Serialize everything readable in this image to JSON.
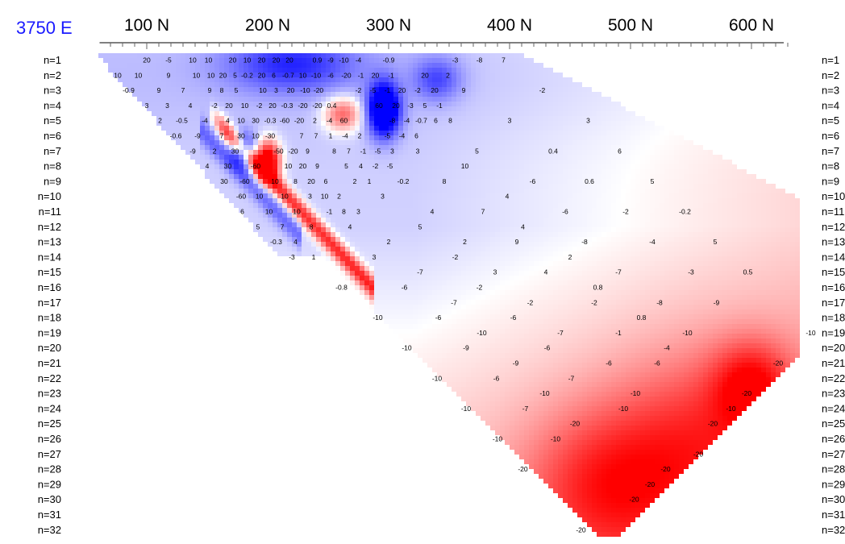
{
  "line_label": "3750 E",
  "colors": {
    "negative": "#ff0000",
    "positive": "#0000ff",
    "neutral": "#ffffff",
    "text": "#000000",
    "axis_label": "#1a1aff"
  },
  "chart_data": {
    "type": "heatmap",
    "title": "",
    "xlabel": "",
    "ylabel": "",
    "x_ticks": [
      100,
      200,
      300,
      400,
      500,
      600
    ],
    "x_tick_labels": [
      "100 N",
      "200 N",
      "300 N",
      "400 N",
      "500 N",
      "600 N"
    ],
    "xlim": [
      60,
      640
    ],
    "y_levels": [
      "n=1",
      "n=2",
      "n=3",
      "n=4",
      "n=5",
      "n=6",
      "n=7",
      "n=8",
      "n=9",
      "n=10",
      "n=11",
      "n=12",
      "n=13",
      "n=14",
      "n=15",
      "n=16",
      "n=17",
      "n=18",
      "n=19",
      "n=20",
      "n=21",
      "n=22",
      "n=23",
      "n=24",
      "n=25",
      "n=26",
      "n=27",
      "n=28",
      "n=29",
      "n=30",
      "n=31",
      "n=32"
    ],
    "color_scale": {
      "min": -60,
      "max": 60,
      "negative": "#ff0000",
      "zero": "#ffffff",
      "positive": "#0000ff"
    },
    "anomalies": [
      {
        "x": 296,
        "n": 4.3,
        "value": 60,
        "sx": 9,
        "sn": 1.2
      },
      {
        "x": 200,
        "n": 7.7,
        "value": -60,
        "sx": 7,
        "sn": 0.9
      },
      {
        "x": 262,
        "n": 4.6,
        "value": -30,
        "sx": 11,
        "sn": 0.8
      },
      {
        "x": 180,
        "n": 7.0,
        "value": 35,
        "sx": 7,
        "sn": 0.8
      },
      {
        "x": 220,
        "n": 1.3,
        "value": 25,
        "sx": 38,
        "sn": 1.3
      },
      {
        "x": 340,
        "n": 2.3,
        "value": 20,
        "sx": 14,
        "sn": 1.0
      },
      {
        "x": 600,
        "n": 22.5,
        "value": -25,
        "sx": 22,
        "sn": 2.0
      },
      {
        "x": 480,
        "n": 29,
        "value": -22,
        "sx": 45,
        "sn": 3.5
      },
      {
        "x": 560,
        "n": 26,
        "value": -18,
        "sx": 50,
        "sn": 4.0
      }
    ],
    "data_labels": [
      {
        "x": 100,
        "n": 1,
        "v": "20"
      },
      {
        "x": 118,
        "n": 1,
        "v": "-5"
      },
      {
        "x": 138,
        "n": 1,
        "v": "10"
      },
      {
        "x": 151,
        "n": 1,
        "v": "10"
      },
      {
        "x": 171,
        "n": 1,
        "v": "20"
      },
      {
        "x": 183,
        "n": 1,
        "v": "10"
      },
      {
        "x": 195,
        "n": 1,
        "v": "20"
      },
      {
        "x": 207,
        "n": 1,
        "v": "20"
      },
      {
        "x": 218,
        "n": 1,
        "v": "20"
      },
      {
        "x": 241,
        "n": 1,
        "v": "0.9"
      },
      {
        "x": 252,
        "n": 1,
        "v": "-9"
      },
      {
        "x": 263,
        "n": 1,
        "v": "-10"
      },
      {
        "x": 275,
        "n": 1,
        "v": "-4"
      },
      {
        "x": 300,
        "n": 1,
        "v": "-0.9"
      },
      {
        "x": 355,
        "n": 1,
        "v": "-3"
      },
      {
        "x": 375,
        "n": 1,
        "v": "-8"
      },
      {
        "x": 395,
        "n": 1,
        "v": "7"
      },
      {
        "x": 76,
        "n": 2,
        "v": "10"
      },
      {
        "x": 93,
        "n": 2,
        "v": "10"
      },
      {
        "x": 118,
        "n": 2,
        "v": "9"
      },
      {
        "x": 141,
        "n": 2,
        "v": "10"
      },
      {
        "x": 153,
        "n": 2,
        "v": "10"
      },
      {
        "x": 163,
        "n": 2,
        "v": "20"
      },
      {
        "x": 173,
        "n": 2,
        "v": "5"
      },
      {
        "x": 183,
        "n": 2,
        "v": "-0.2"
      },
      {
        "x": 195,
        "n": 2,
        "v": "20"
      },
      {
        "x": 205,
        "n": 2,
        "v": "6"
      },
      {
        "x": 217,
        "n": 2,
        "v": "-0.7"
      },
      {
        "x": 229,
        "n": 2,
        "v": "10"
      },
      {
        "x": 240,
        "n": 2,
        "v": "-10"
      },
      {
        "x": 252,
        "n": 2,
        "v": "-6"
      },
      {
        "x": 265,
        "n": 2,
        "v": "-20"
      },
      {
        "x": 277,
        "n": 2,
        "v": "-1"
      },
      {
        "x": 289,
        "n": 2,
        "v": "20"
      },
      {
        "x": 302,
        "n": 2,
        "v": "-1"
      },
      {
        "x": 330,
        "n": 2,
        "v": "20"
      },
      {
        "x": 349,
        "n": 2,
        "v": "2"
      },
      {
        "x": 85,
        "n": 3,
        "v": "-0.9"
      },
      {
        "x": 110,
        "n": 3,
        "v": "9"
      },
      {
        "x": 130,
        "n": 3,
        "v": "7"
      },
      {
        "x": 152,
        "n": 3,
        "v": "9"
      },
      {
        "x": 162,
        "n": 3,
        "v": "8"
      },
      {
        "x": 174,
        "n": 3,
        "v": "5"
      },
      {
        "x": 196,
        "n": 3,
        "v": "10"
      },
      {
        "x": 207,
        "n": 3,
        "v": "3"
      },
      {
        "x": 219,
        "n": 3,
        "v": "20"
      },
      {
        "x": 231,
        "n": 3,
        "v": "-10"
      },
      {
        "x": 242,
        "n": 3,
        "v": "-20"
      },
      {
        "x": 275,
        "n": 3,
        "v": "-2"
      },
      {
        "x": 287,
        "n": 3,
        "v": "-5"
      },
      {
        "x": 299,
        "n": 3,
        "v": "-1"
      },
      {
        "x": 311,
        "n": 3,
        "v": "20"
      },
      {
        "x": 324,
        "n": 3,
        "v": "-2"
      },
      {
        "x": 338,
        "n": 3,
        "v": "20"
      },
      {
        "x": 362,
        "n": 3,
        "v": "9"
      },
      {
        "x": 427,
        "n": 3,
        "v": "-2"
      },
      {
        "x": 100,
        "n": 4,
        "v": "3"
      },
      {
        "x": 117,
        "n": 4,
        "v": "3"
      },
      {
        "x": 136,
        "n": 4,
        "v": "4"
      },
      {
        "x": 156,
        "n": 4,
        "v": "-2"
      },
      {
        "x": 168,
        "n": 4,
        "v": "20"
      },
      {
        "x": 181,
        "n": 4,
        "v": "10"
      },
      {
        "x": 193,
        "n": 4,
        "v": "-2"
      },
      {
        "x": 204,
        "n": 4,
        "v": "20"
      },
      {
        "x": 216,
        "n": 4,
        "v": "-0.3"
      },
      {
        "x": 229,
        "n": 4,
        "v": "-20"
      },
      {
        "x": 241,
        "n": 4,
        "v": "-20"
      },
      {
        "x": 253,
        "n": 4,
        "v": "0.4"
      },
      {
        "x": 292,
        "n": 4,
        "v": "60"
      },
      {
        "x": 306,
        "n": 4,
        "v": "20"
      },
      {
        "x": 318,
        "n": 4,
        "v": "-3"
      },
      {
        "x": 330,
        "n": 4,
        "v": "5"
      },
      {
        "x": 342,
        "n": 4,
        "v": "-1"
      },
      {
        "x": 111,
        "n": 5,
        "v": "2"
      },
      {
        "x": 129,
        "n": 5,
        "v": "-0.5"
      },
      {
        "x": 148,
        "n": 5,
        "v": "-4"
      },
      {
        "x": 167,
        "n": 5,
        "v": "4"
      },
      {
        "x": 178,
        "n": 5,
        "v": "10"
      },
      {
        "x": 190,
        "n": 5,
        "v": "30"
      },
      {
        "x": 202,
        "n": 5,
        "v": "-0.3"
      },
      {
        "x": 214,
        "n": 5,
        "v": "-60"
      },
      {
        "x": 226,
        "n": 5,
        "v": "-20"
      },
      {
        "x": 239,
        "n": 5,
        "v": "2"
      },
      {
        "x": 251,
        "n": 5,
        "v": "-4"
      },
      {
        "x": 263,
        "n": 5,
        "v": "60"
      },
      {
        "x": 303,
        "n": 5,
        "v": "-8"
      },
      {
        "x": 315,
        "n": 5,
        "v": "-4"
      },
      {
        "x": 327,
        "n": 5,
        "v": "-0.7"
      },
      {
        "x": 339,
        "n": 5,
        "v": "6"
      },
      {
        "x": 351,
        "n": 5,
        "v": "8"
      },
      {
        "x": 400,
        "n": 5,
        "v": "3"
      },
      {
        "x": 465,
        "n": 5,
        "v": "3"
      },
      {
        "x": 124,
        "n": 6,
        "v": "-0.6"
      },
      {
        "x": 142,
        "n": 6,
        "v": "-9"
      },
      {
        "x": 162,
        "n": 6,
        "v": "7"
      },
      {
        "x": 178,
        "n": 6,
        "v": "30"
      },
      {
        "x": 190,
        "n": 6,
        "v": "10"
      },
      {
        "x": 202,
        "n": 6,
        "v": "-30"
      },
      {
        "x": 228,
        "n": 6,
        "v": "7"
      },
      {
        "x": 240,
        "n": 6,
        "v": "7"
      },
      {
        "x": 252,
        "n": 6,
        "v": "1"
      },
      {
        "x": 264,
        "n": 6,
        "v": "-4"
      },
      {
        "x": 276,
        "n": 6,
        "v": "2"
      },
      {
        "x": 299,
        "n": 6,
        "v": "-5"
      },
      {
        "x": 311,
        "n": 6,
        "v": "-4"
      },
      {
        "x": 323,
        "n": 6,
        "v": "6"
      },
      {
        "x": 138,
        "n": 7,
        "v": "-9"
      },
      {
        "x": 156,
        "n": 7,
        "v": "2"
      },
      {
        "x": 173,
        "n": 7,
        "v": "30"
      },
      {
        "x": 209,
        "n": 7,
        "v": "-50"
      },
      {
        "x": 221,
        "n": 7,
        "v": "-20"
      },
      {
        "x": 233,
        "n": 7,
        "v": "9"
      },
      {
        "x": 255,
        "n": 7,
        "v": "8"
      },
      {
        "x": 267,
        "n": 7,
        "v": "7"
      },
      {
        "x": 279,
        "n": 7,
        "v": "-1"
      },
      {
        "x": 291,
        "n": 7,
        "v": "-5"
      },
      {
        "x": 303,
        "n": 7,
        "v": "3"
      },
      {
        "x": 324,
        "n": 7,
        "v": "3"
      },
      {
        "x": 373,
        "n": 7,
        "v": "5"
      },
      {
        "x": 436,
        "n": 7,
        "v": "0.4"
      },
      {
        "x": 491,
        "n": 7,
        "v": "6"
      },
      {
        "x": 150,
        "n": 8,
        "v": "4"
      },
      {
        "x": 167,
        "n": 8,
        "v": "30"
      },
      {
        "x": 190,
        "n": 8,
        "v": "-60"
      },
      {
        "x": 217,
        "n": 8,
        "v": "10"
      },
      {
        "x": 229,
        "n": 8,
        "v": "20"
      },
      {
        "x": 241,
        "n": 8,
        "v": "9"
      },
      {
        "x": 265,
        "n": 8,
        "v": "5"
      },
      {
        "x": 277,
        "n": 8,
        "v": "4"
      },
      {
        "x": 289,
        "n": 8,
        "v": "-2"
      },
      {
        "x": 301,
        "n": 8,
        "v": "-5"
      },
      {
        "x": 363,
        "n": 8,
        "v": "10"
      },
      {
        "x": 164,
        "n": 9,
        "v": "30"
      },
      {
        "x": 181,
        "n": 9,
        "v": "-60"
      },
      {
        "x": 206,
        "n": 9,
        "v": "10"
      },
      {
        "x": 223,
        "n": 9,
        "v": "8"
      },
      {
        "x": 236,
        "n": 9,
        "v": "20"
      },
      {
        "x": 248,
        "n": 9,
        "v": "6"
      },
      {
        "x": 272,
        "n": 9,
        "v": "2"
      },
      {
        "x": 284,
        "n": 9,
        "v": "1"
      },
      {
        "x": 312,
        "n": 9,
        "v": "-0.2"
      },
      {
        "x": 346,
        "n": 9,
        "v": "8"
      },
      {
        "x": 419,
        "n": 9,
        "v": "-6"
      },
      {
        "x": 466,
        "n": 9,
        "v": "0.6"
      },
      {
        "x": 518,
        "n": 9,
        "v": "5"
      },
      {
        "x": 178,
        "n": 10,
        "v": "-60"
      },
      {
        "x": 193,
        "n": 10,
        "v": "10"
      },
      {
        "x": 214,
        "n": 10,
        "v": "10"
      },
      {
        "x": 235,
        "n": 10,
        "v": "3"
      },
      {
        "x": 247,
        "n": 10,
        "v": "10"
      },
      {
        "x": 259,
        "n": 10,
        "v": "2"
      },
      {
        "x": 295,
        "n": 10,
        "v": "3"
      },
      {
        "x": 398,
        "n": 10,
        "v": "4"
      },
      {
        "x": 179,
        "n": 11,
        "v": "6"
      },
      {
        "x": 201,
        "n": 11,
        "v": "10"
      },
      {
        "x": 224,
        "n": 11,
        "v": "10"
      },
      {
        "x": 251,
        "n": 11,
        "v": "-1"
      },
      {
        "x": 263,
        "n": 11,
        "v": "8"
      },
      {
        "x": 275,
        "n": 11,
        "v": "3"
      },
      {
        "x": 336,
        "n": 11,
        "v": "4"
      },
      {
        "x": 378,
        "n": 11,
        "v": "7"
      },
      {
        "x": 446,
        "n": 11,
        "v": "-6"
      },
      {
        "x": 496,
        "n": 11,
        "v": "-2"
      },
      {
        "x": 545,
        "n": 11,
        "v": "-0.2"
      },
      {
        "x": 192,
        "n": 12,
        "v": "5"
      },
      {
        "x": 212,
        "n": 12,
        "v": "7"
      },
      {
        "x": 236,
        "n": 12,
        "v": "8"
      },
      {
        "x": 268,
        "n": 12,
        "v": "4"
      },
      {
        "x": 326,
        "n": 12,
        "v": "5"
      },
      {
        "x": 411,
        "n": 12,
        "v": "4"
      },
      {
        "x": 207,
        "n": 13,
        "v": "-0.3"
      },
      {
        "x": 223,
        "n": 13,
        "v": "4"
      },
      {
        "x": 300,
        "n": 13,
        "v": "2"
      },
      {
        "x": 363,
        "n": 13,
        "v": "2"
      },
      {
        "x": 406,
        "n": 13,
        "v": "9"
      },
      {
        "x": 462,
        "n": 13,
        "v": "-8"
      },
      {
        "x": 518,
        "n": 13,
        "v": "-4"
      },
      {
        "x": 570,
        "n": 13,
        "v": "5"
      },
      {
        "x": 220,
        "n": 14,
        "v": "-3"
      },
      {
        "x": 238,
        "n": 14,
        "v": "1"
      },
      {
        "x": 288,
        "n": 14,
        "v": "3"
      },
      {
        "x": 355,
        "n": 14,
        "v": "-2"
      },
      {
        "x": 450,
        "n": 14,
        "v": "2"
      },
      {
        "x": 326,
        "n": 15,
        "v": "-7"
      },
      {
        "x": 388,
        "n": 15,
        "v": "3"
      },
      {
        "x": 430,
        "n": 15,
        "v": "4"
      },
      {
        "x": 490,
        "n": 15,
        "v": "-7"
      },
      {
        "x": 550,
        "n": 15,
        "v": "-3"
      },
      {
        "x": 597,
        "n": 15,
        "v": "0.5"
      },
      {
        "x": 261,
        "n": 16,
        "v": "-0.8"
      },
      {
        "x": 313,
        "n": 16,
        "v": "-6"
      },
      {
        "x": 375,
        "n": 16,
        "v": "-2"
      },
      {
        "x": 473,
        "n": 16,
        "v": "0.8"
      },
      {
        "x": 354,
        "n": 17,
        "v": "-7"
      },
      {
        "x": 417,
        "n": 17,
        "v": "-2"
      },
      {
        "x": 470,
        "n": 17,
        "v": "-2"
      },
      {
        "x": 524,
        "n": 17,
        "v": "-8"
      },
      {
        "x": 571,
        "n": 17,
        "v": "-9"
      },
      {
        "x": 291,
        "n": 18,
        "v": "-10"
      },
      {
        "x": 341,
        "n": 18,
        "v": "-6"
      },
      {
        "x": 403,
        "n": 18,
        "v": "-6"
      },
      {
        "x": 509,
        "n": 18,
        "v": "0.8"
      },
      {
        "x": 377,
        "n": 19,
        "v": "-10"
      },
      {
        "x": 442,
        "n": 19,
        "v": "-7"
      },
      {
        "x": 490,
        "n": 19,
        "v": "-1"
      },
      {
        "x": 547,
        "n": 19,
        "v": "-10"
      },
      {
        "x": 649,
        "n": 19,
        "v": "-10"
      },
      {
        "x": 315,
        "n": 20,
        "v": "-10"
      },
      {
        "x": 364,
        "n": 20,
        "v": "-9"
      },
      {
        "x": 431,
        "n": 20,
        "v": "-6"
      },
      {
        "x": 530,
        "n": 20,
        "v": "-4"
      },
      {
        "x": 405,
        "n": 21,
        "v": "-9"
      },
      {
        "x": 482,
        "n": 21,
        "v": "-6"
      },
      {
        "x": 522,
        "n": 21,
        "v": "-6"
      },
      {
        "x": 622,
        "n": 21,
        "v": "-20"
      },
      {
        "x": 340,
        "n": 22,
        "v": "-10"
      },
      {
        "x": 389,
        "n": 22,
        "v": "-6"
      },
      {
        "x": 451,
        "n": 22,
        "v": "-7"
      },
      {
        "x": 429,
        "n": 23,
        "v": "-10"
      },
      {
        "x": 504,
        "n": 23,
        "v": "-10"
      },
      {
        "x": 596,
        "n": 23,
        "v": "-20"
      },
      {
        "x": 364,
        "n": 24,
        "v": "-10"
      },
      {
        "x": 413,
        "n": 24,
        "v": "-7"
      },
      {
        "x": 494,
        "n": 24,
        "v": "-10"
      },
      {
        "x": 583,
        "n": 24,
        "v": "-10"
      },
      {
        "x": 454,
        "n": 25,
        "v": "-20"
      },
      {
        "x": 568,
        "n": 25,
        "v": "-20"
      },
      {
        "x": 390,
        "n": 26,
        "v": "-10"
      },
      {
        "x": 438,
        "n": 26,
        "v": "-10"
      },
      {
        "x": 556,
        "n": 27,
        "v": "-20"
      },
      {
        "x": 411,
        "n": 28,
        "v": "-20"
      },
      {
        "x": 529,
        "n": 28,
        "v": "-20"
      },
      {
        "x": 516,
        "n": 29,
        "v": "-20"
      },
      {
        "x": 503,
        "n": 30,
        "v": "-20"
      },
      {
        "x": 459,
        "n": 32,
        "v": "-20"
      }
    ]
  }
}
